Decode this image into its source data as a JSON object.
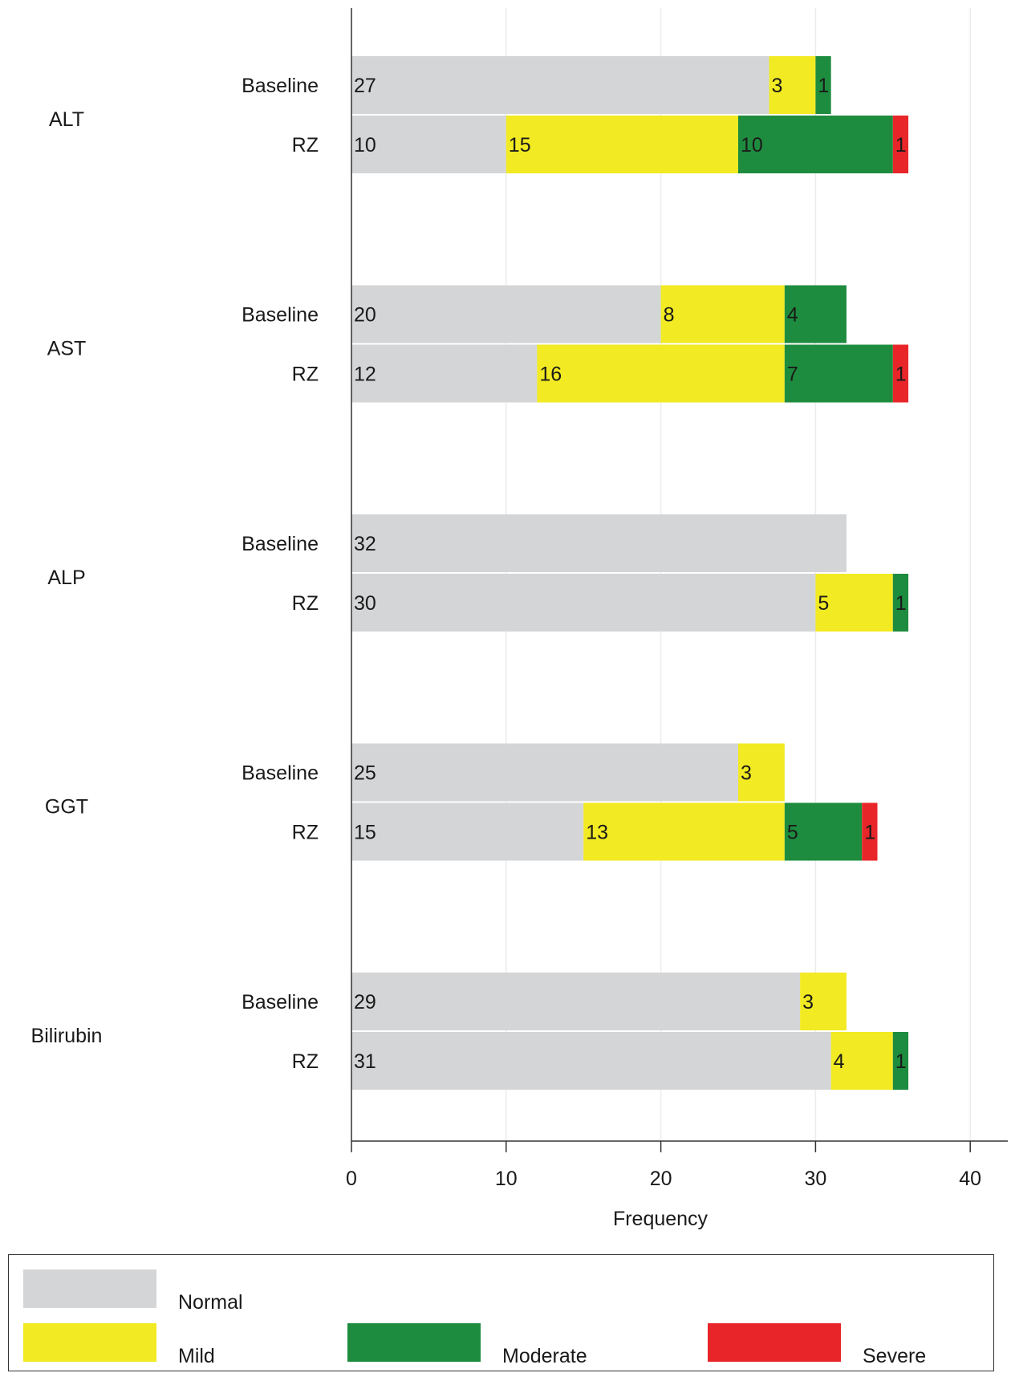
{
  "chart_data": {
    "type": "bar",
    "orientation": "horizontal",
    "stacked": true,
    "groups": [
      "ALT",
      "AST",
      "ALP",
      "GGT",
      "Bilirubin"
    ],
    "bar_labels": [
      "Baseline",
      "RZ"
    ],
    "series": [
      {
        "name": "Normal",
        "color": "#d4d5d6",
        "values": [
          [
            27,
            10
          ],
          [
            20,
            12
          ],
          [
            32,
            30
          ],
          [
            25,
            15
          ],
          [
            29,
            31
          ]
        ]
      },
      {
        "name": "Mild",
        "color": "#f2ea22",
        "values": [
          [
            3,
            15
          ],
          [
            8,
            16
          ],
          [
            0,
            5
          ],
          [
            3,
            13
          ],
          [
            3,
            4
          ]
        ]
      },
      {
        "name": "Moderate",
        "color": "#1e8c3e",
        "values": [
          [
            1,
            10
          ],
          [
            4,
            7
          ],
          [
            0,
            1
          ],
          [
            0,
            5
          ],
          [
            0,
            1
          ]
        ]
      },
      {
        "name": "Severe",
        "color": "#e8262a",
        "values": [
          [
            0,
            1
          ],
          [
            0,
            1
          ],
          [
            0,
            0
          ],
          [
            0,
            1
          ],
          [
            0,
            0
          ]
        ]
      }
    ],
    "xlabel": "Frequency",
    "xlim": [
      0,
      42
    ],
    "xticks": [
      0,
      10,
      20,
      30,
      40
    ],
    "grid": "vertical",
    "legend": "bottom"
  }
}
